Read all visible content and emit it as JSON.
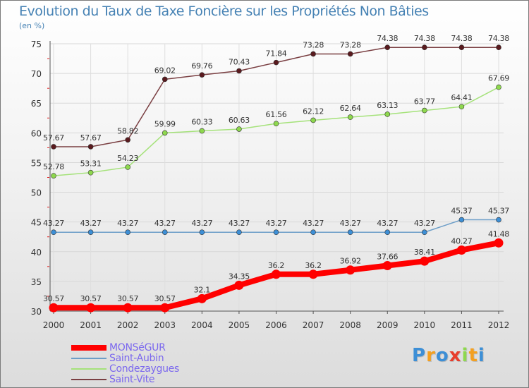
{
  "chart_data": {
    "type": "line",
    "title": "Evolution du Taux de Taxe Foncière sur les Propriétés Non Bâties",
    "subtitle": "(en %)",
    "xlabel": "",
    "ylabel": "",
    "ylim": [
      30,
      75
    ],
    "yticks": [
      30,
      35,
      40,
      45,
      50,
      55,
      60,
      65,
      70,
      75
    ],
    "categories": [
      "2000",
      "2001",
      "2002",
      "2003",
      "2004",
      "2005",
      "2006",
      "2007",
      "2008",
      "2009",
      "2010",
      "2011",
      "2012"
    ],
    "series": [
      {
        "name": "MONSéGUR",
        "key": "monsegur",
        "color": "#ff0000",
        "marker": "#ff0000",
        "values": [
          30.57,
          30.57,
          30.57,
          30.57,
          32.1,
          34.35,
          36.2,
          36.2,
          36.92,
          37.66,
          38.41,
          40.27,
          41.48
        ],
        "labels": [
          "30.57",
          "30.57",
          "30.57",
          "30.57",
          "32.1",
          "34.35",
          "36.2",
          "36.2",
          "36.92",
          "37.66",
          "38.41",
          "40.27",
          "41.48"
        ]
      },
      {
        "name": "Saint-Aubin",
        "key": "saint-aubin",
        "color": "#6d9ec8",
        "marker": "#3d8fd6",
        "values": [
          43.27,
          43.27,
          43.27,
          43.27,
          43.27,
          43.27,
          43.27,
          43.27,
          43.27,
          43.27,
          43.27,
          45.37,
          45.37
        ],
        "labels": [
          "43.27",
          "43.27",
          "43.27",
          "43.27",
          "43.27",
          "43.27",
          "43.27",
          "43.27",
          "43.27",
          "43.27",
          "43.27",
          "45.37",
          "45.37"
        ]
      },
      {
        "name": "Condezaygues",
        "key": "condezaygues",
        "color": "#a5e27a",
        "marker": "#8ed84e",
        "values": [
          52.78,
          53.31,
          54.23,
          59.99,
          60.33,
          60.63,
          61.56,
          62.12,
          62.64,
          63.13,
          63.77,
          64.41,
          67.69
        ],
        "labels": [
          "52.78",
          "53.31",
          "54.23",
          "59.99",
          "60.33",
          "60.63",
          "61.56",
          "62.12",
          "62.64",
          "63.13",
          "63.77",
          "64.41",
          "67.69"
        ]
      },
      {
        "name": "Saint-Vite",
        "key": "saint-vite",
        "color": "#7a3f42",
        "marker": "#5a1a1e",
        "values": [
          57.67,
          57.67,
          58.82,
          69.02,
          69.76,
          70.43,
          71.84,
          73.28,
          73.28,
          74.38,
          74.38,
          74.38,
          74.38
        ],
        "labels": [
          "57.67",
          "57.67",
          "58.82",
          "69.02",
          "69.76",
          "70.43",
          "71.84",
          "73.28",
          "73.28",
          "74.38",
          "74.38",
          "74.38",
          "74.38"
        ]
      }
    ]
  },
  "logo": {
    "text": "Proxiti"
  }
}
